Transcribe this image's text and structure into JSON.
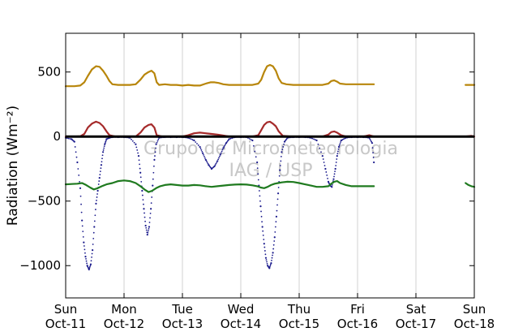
{
  "chart_data": {
    "type": "line",
    "ylabel": "Radiation (Wm⁻²)",
    "xlabel": "",
    "ylim": [
      -1250,
      800
    ],
    "xlim": [
      0,
      7
    ],
    "grid": "vertical",
    "yticks": [
      -1000,
      -500,
      0,
      500
    ],
    "ytick_labels": [
      "−1000",
      "−500",
      "0",
      "500"
    ],
    "xticks": [
      0,
      1,
      2,
      3,
      4,
      5,
      6,
      7
    ],
    "xtick_labels": [
      [
        "Sun",
        "Oct-11"
      ],
      [
        "Mon",
        "Oct-12"
      ],
      [
        "Tue",
        "Oct-13"
      ],
      [
        "Wed",
        "Oct-14"
      ],
      [
        "Thu",
        "Oct-15"
      ],
      [
        "Fri",
        "Oct-16"
      ],
      [
        "Sat",
        "Oct-17"
      ],
      [
        "Sun",
        "Oct-18"
      ]
    ],
    "watermark": [
      "Grupo de Micrometeorologia",
      "IAG / USP"
    ],
    "series": [
      {
        "color": "#b8860b",
        "style": "line",
        "segments": [
          {
            "x": [
              0,
              0.15,
              0.25,
              0.32,
              0.38,
              0.45,
              0.52,
              0.58,
              0.64,
              0.7,
              0.75,
              0.8,
              0.9,
              1.0,
              1.1,
              1.2,
              1.28,
              1.35,
              1.42,
              1.47,
              1.52,
              1.56,
              1.6,
              1.7,
              1.8,
              1.9,
              2.0,
              2.1,
              2.2,
              2.3,
              2.4,
              2.48,
              2.55,
              2.62,
              2.7,
              2.8,
              2.9,
              3.0,
              3.1,
              3.2,
              3.3,
              3.35,
              3.4,
              3.45,
              3.5,
              3.55,
              3.6,
              3.65,
              3.7,
              3.78,
              3.9,
              4.0,
              4.1,
              4.2,
              4.3,
              4.4,
              4.5,
              4.55,
              4.6,
              4.65,
              4.7,
              4.8,
              4.9,
              5.0,
              5.1,
              5.2,
              5.28
            ],
            "y": [
              390,
              390,
              395,
              420,
              470,
              520,
              545,
              540,
              510,
              470,
              430,
              405,
              400,
              400,
              400,
              405,
              440,
              480,
              500,
              510,
              490,
              420,
              400,
              405,
              400,
              400,
              395,
              400,
              395,
              395,
              410,
              420,
              420,
              415,
              405,
              400,
              400,
              400,
              400,
              400,
              410,
              440,
              500,
              545,
              555,
              545,
              510,
              450,
              415,
              405,
              400,
              400,
              400,
              400,
              400,
              400,
              410,
              430,
              435,
              425,
              410,
              405,
              405,
              405,
              405,
              405,
              405
            ]
          },
          {
            "x": [
              6.85,
              6.9,
              7.0
            ],
            "y": [
              400,
              400,
              400
            ]
          }
        ]
      },
      {
        "color": "#a52a2a",
        "style": "line",
        "segments": [
          {
            "x": [
              0,
              0.15,
              0.25,
              0.32,
              0.38,
              0.45,
              0.52,
              0.58,
              0.64,
              0.7,
              0.75,
              0.85,
              1.0,
              1.2,
              1.28,
              1.35,
              1.42,
              1.47,
              1.52,
              1.56,
              1.65,
              1.8,
              2.0,
              2.1,
              2.2,
              2.3,
              2.4,
              2.5,
              2.6,
              2.7,
              2.8,
              3.0,
              3.2,
              3.3,
              3.35,
              3.4,
              3.45,
              3.5,
              3.55,
              3.6,
              3.65,
              3.72,
              3.85,
              4.0,
              4.2,
              4.4,
              4.5,
              4.55,
              4.6,
              4.65,
              4.72,
              4.8,
              5.0,
              5.1,
              5.2,
              5.28
            ],
            "y": [
              0,
              0,
              2,
              20,
              70,
              100,
              115,
              105,
              80,
              40,
              10,
              0,
              0,
              0,
              30,
              70,
              90,
              95,
              70,
              10,
              0,
              0,
              0,
              10,
              25,
              30,
              25,
              20,
              15,
              8,
              0,
              0,
              0,
              10,
              50,
              90,
              110,
              115,
              100,
              80,
              40,
              5,
              0,
              0,
              0,
              0,
              15,
              35,
              40,
              30,
              10,
              0,
              0,
              0,
              10,
              0
            ]
          },
          {
            "x": [
              6.85,
              6.95,
              7.0
            ],
            "y": [
              0,
              5,
              0
            ]
          }
        ]
      },
      {
        "color": "#1a1a8c",
        "style": "dots",
        "segments": [
          {
            "x": [
              0,
              0.1,
              0.15,
              0.2,
              0.25,
              0.28,
              0.31,
              0.34,
              0.37,
              0.4,
              0.43,
              0.46,
              0.49,
              0.52,
              0.55,
              0.58,
              0.61,
              0.64,
              0.67,
              0.7,
              0.75,
              0.8,
              0.9,
              1.0,
              1.1,
              1.2,
              1.25,
              1.28,
              1.31,
              1.34,
              1.37,
              1.4,
              1.43,
              1.46,
              1.49,
              1.52,
              1.55,
              1.6,
              1.7,
              1.8,
              1.9,
              2.0,
              2.1,
              2.2,
              2.3,
              2.35,
              2.4,
              2.45,
              2.5,
              2.55,
              2.6,
              2.65,
              2.7,
              2.75,
              2.8,
              2.9,
              3.0,
              3.1,
              3.2,
              3.28,
              3.31,
              3.34,
              3.37,
              3.4,
              3.43,
              3.46,
              3.49,
              3.52,
              3.55,
              3.58,
              3.61,
              3.64,
              3.67,
              3.7,
              3.75,
              3.8,
              3.9,
              4.0,
              4.1,
              4.2,
              4.3,
              4.4,
              4.45,
              4.5,
              4.53,
              4.56,
              4.59,
              4.62,
              4.65,
              4.68,
              4.72,
              4.8,
              4.9,
              5.0,
              5.1,
              5.2,
              5.25,
              5.28
            ],
            "y": [
              -10,
              -20,
              -40,
              -200,
              -400,
              -650,
              -820,
              -930,
              -1000,
              -1030,
              -990,
              -880,
              -700,
              -520,
              -420,
              -320,
              -220,
              -120,
              -60,
              -20,
              -10,
              -5,
              -5,
              -5,
              -10,
              -60,
              -150,
              -280,
              -420,
              -560,
              -690,
              -760,
              -700,
              -560,
              -380,
              -180,
              -60,
              -10,
              -5,
              -5,
              -5,
              -5,
              -10,
              -30,
              -80,
              -130,
              -180,
              -220,
              -250,
              -230,
              -190,
              -140,
              -90,
              -50,
              -20,
              -5,
              -5,
              -5,
              -30,
              -200,
              -380,
              -540,
              -700,
              -830,
              -940,
              -1000,
              -1020,
              -980,
              -900,
              -780,
              -620,
              -440,
              -260,
              -120,
              -40,
              -10,
              -5,
              -5,
              -5,
              -10,
              -30,
              -150,
              -250,
              -350,
              -380,
              -390,
              -330,
              -250,
              -150,
              -80,
              -30,
              -10,
              -5,
              -5,
              -5,
              -10,
              -50,
              -200
            ]
          }
        ]
      },
      {
        "color": "#1f7a1f",
        "style": "line",
        "segments": [
          {
            "x": [
              0,
              0.1,
              0.2,
              0.28,
              0.35,
              0.42,
              0.48,
              0.55,
              0.62,
              0.7,
              0.8,
              0.9,
              1.0,
              1.1,
              1.2,
              1.28,
              1.35,
              1.42,
              1.48,
              1.55,
              1.62,
              1.7,
              1.8,
              1.9,
              2.0,
              2.1,
              2.2,
              2.3,
              2.4,
              2.5,
              2.6,
              2.7,
              2.8,
              2.9,
              3.0,
              3.1,
              3.2,
              3.28,
              3.34,
              3.4,
              3.46,
              3.52,
              3.58,
              3.64,
              3.7,
              3.8,
              3.9,
              4.0,
              4.1,
              4.2,
              4.3,
              4.4,
              4.5,
              4.55,
              4.6,
              4.65,
              4.7,
              4.8,
              4.9,
              5.0,
              5.1,
              5.2,
              5.28
            ],
            "y": [
              -370,
              -368,
              -365,
              -360,
              -375,
              -395,
              -410,
              -400,
              -385,
              -370,
              -360,
              -345,
              -340,
              -345,
              -360,
              -385,
              -410,
              -430,
              -420,
              -400,
              -385,
              -375,
              -370,
              -375,
              -380,
              -380,
              -375,
              -378,
              -385,
              -390,
              -385,
              -380,
              -375,
              -372,
              -370,
              -372,
              -378,
              -385,
              -395,
              -400,
              -390,
              -375,
              -365,
              -360,
              -355,
              -350,
              -352,
              -360,
              -370,
              -380,
              -390,
              -390,
              -385,
              -365,
              -350,
              -345,
              -360,
              -375,
              -385,
              -385,
              -385,
              -385,
              -385
            ]
          },
          {
            "x": [
              6.85,
              6.9,
              6.95,
              7.0
            ],
            "y": [
              -360,
              -375,
              -385,
              -390
            ]
          }
        ]
      }
    ]
  }
}
